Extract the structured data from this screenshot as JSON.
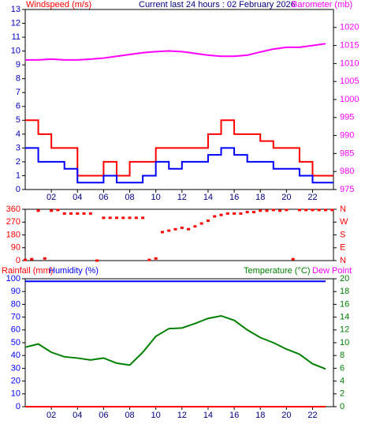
{
  "chart_data": [
    {
      "type": "line",
      "y_label": "Windspeed (m/s)",
      "title": "Current last 24 hours : 02 February 2026",
      "y2_label": "Barometer (mb)",
      "x": [
        0,
        1,
        2,
        3,
        4,
        5,
        6,
        7,
        8,
        9,
        10,
        11,
        12,
        13,
        14,
        15,
        16,
        17,
        18,
        19,
        20,
        21,
        22,
        23
      ],
      "xlim": [
        0,
        23.6
      ],
      "xticks": [
        {
          "value": 2,
          "label": "02"
        },
        {
          "value": 4,
          "label": "04"
        },
        {
          "value": 6,
          "label": "06"
        },
        {
          "value": 8,
          "label": "08"
        },
        {
          "value": 10,
          "label": "10"
        },
        {
          "value": 12,
          "label": "12"
        },
        {
          "value": 14,
          "label": "14"
        },
        {
          "value": 16,
          "label": "16"
        },
        {
          "value": 18,
          "label": "18"
        },
        {
          "value": 20,
          "label": "20"
        },
        {
          "value": 22,
          "label": "22"
        }
      ],
      "ylim": [
        0,
        13
      ],
      "yticks": [
        0,
        1,
        2,
        3,
        4,
        5,
        6,
        7,
        8,
        9,
        10,
        11,
        12,
        13
      ],
      "y2lim": [
        975,
        1025
      ],
      "y2ticks": [
        975,
        980,
        985,
        990,
        995,
        1000,
        1005,
        1010,
        1015,
        1020
      ],
      "step": true,
      "series": [
        {
          "color": "#ff0000",
          "values": [
            5,
            4,
            3,
            3,
            1,
            1,
            2,
            1,
            2,
            2,
            3,
            3,
            3,
            3,
            4,
            5,
            4,
            4,
            3.5,
            3,
            3,
            2,
            1,
            1
          ]
        },
        {
          "color": "#0000ff",
          "values": [
            3,
            2,
            2,
            1.5,
            0.5,
            0.5,
            1,
            0.5,
            0.5,
            1,
            2,
            1.5,
            2,
            2,
            2.5,
            3,
            2.5,
            2,
            2,
            1.5,
            1.5,
            1,
            0.5,
            0.5
          ]
        },
        {
          "color": "#ff00ff",
          "axis": "y2",
          "step": false,
          "values": [
            1011,
            1011,
            1011.2,
            1011,
            1011,
            1011.2,
            1011.5,
            1012,
            1012.5,
            1013,
            1013.3,
            1013.5,
            1013.3,
            1012.8,
            1012.3,
            1012,
            1012,
            1012.3,
            1013.2,
            1014,
            1014.5,
            1014.5,
            1015,
            1015.5
          ]
        }
      ]
    },
    {
      "type": "scatter",
      "x": [
        0,
        0.5,
        1,
        1.5,
        2,
        2.5,
        3,
        3.5,
        4,
        4.5,
        5,
        5.5,
        6,
        6.5,
        7,
        7.5,
        8,
        8.5,
        9,
        9.5,
        10,
        10.5,
        11,
        11.5,
        12,
        12.5,
        13,
        13.5,
        14,
        14.5,
        15,
        15.5,
        16,
        16.5,
        17,
        17.5,
        18,
        18.5,
        19,
        19.5,
        20,
        20.5,
        21,
        21.5,
        22,
        22.5,
        23,
        23.5
      ],
      "xlim": [
        0,
        23.6
      ],
      "values": [
        5,
        10,
        350,
        15,
        350,
        355,
        330,
        330,
        330,
        330,
        330,
        0,
        300,
        300,
        300,
        300,
        300,
        300,
        300,
        5,
        15,
        200,
        210,
        220,
        230,
        220,
        240,
        260,
        280,
        310,
        320,
        330,
        330,
        330,
        340,
        340,
        350,
        350,
        355,
        350,
        355,
        10,
        355,
        355,
        355,
        355,
        355,
        355
      ],
      "color": "#ff0000",
      "ylim": [
        0,
        360
      ],
      "yticks": [
        0,
        90,
        180,
        270,
        360
      ],
      "y2lim": [
        0,
        360
      ],
      "y2ticks": [
        {
          "value": 0,
          "label": "N"
        },
        {
          "value": 90,
          "label": "E"
        },
        {
          "value": 180,
          "label": "S"
        },
        {
          "value": 270,
          "label": "W"
        },
        {
          "value": 360,
          "label": "N"
        }
      ]
    },
    {
      "type": "line",
      "y_label": "Rainfall (mm)",
      "y_label2": "Humidity (%)",
      "y2_label": "Temperature (°C)",
      "y2_label2": "Dew Point",
      "x": [
        0,
        1,
        2,
        3,
        4,
        5,
        6,
        7,
        8,
        9,
        10,
        11,
        12,
        13,
        14,
        15,
        16,
        17,
        18,
        19,
        20,
        21,
        22,
        23
      ],
      "xlim": [
        0,
        23.6
      ],
      "xticks": [
        {
          "value": 2,
          "label": "02"
        },
        {
          "value": 4,
          "label": "04"
        },
        {
          "value": 6,
          "label": "06"
        },
        {
          "value": 8,
          "label": "08"
        },
        {
          "value": 10,
          "label": "10"
        },
        {
          "value": 12,
          "label": "12"
        },
        {
          "value": 14,
          "label": "14"
        },
        {
          "value": 16,
          "label": "16"
        },
        {
          "value": 18,
          "label": "18"
        },
        {
          "value": 20,
          "label": "20"
        },
        {
          "value": 22,
          "label": "22"
        }
      ],
      "ylim": [
        0,
        100
      ],
      "yticks": [
        0,
        10,
        20,
        30,
        40,
        50,
        60,
        70,
        80,
        90,
        100
      ],
      "y2lim": [
        0,
        20
      ],
      "y2ticks": [
        0,
        2,
        4,
        6,
        8,
        10,
        12,
        14,
        16,
        18,
        20
      ],
      "series": [
        {
          "color": "#0000ff",
          "values": [
            98,
            98,
            98,
            98,
            98,
            98,
            98,
            98,
            98,
            98,
            98,
            98,
            98,
            98,
            98,
            98,
            98,
            98,
            98,
            98,
            98,
            98,
            98,
            98
          ]
        },
        {
          "color": "#ff0000",
          "values": [
            0,
            0,
            0,
            0,
            0,
            0,
            0,
            0,
            0,
            0,
            0,
            0,
            0,
            0,
            0,
            0,
            0,
            0,
            0,
            0,
            0,
            0,
            0,
            0
          ]
        },
        {
          "color": "#008000",
          "axis": "y2",
          "values": [
            9.3,
            9.8,
            8.5,
            7.8,
            7.6,
            7.3,
            7.6,
            6.8,
            6.5,
            8.5,
            11,
            12.2,
            12.3,
            13,
            13.8,
            14.2,
            13.5,
            12,
            10.8,
            10,
            9,
            8.2,
            6.7,
            5.9
          ]
        }
      ]
    }
  ]
}
